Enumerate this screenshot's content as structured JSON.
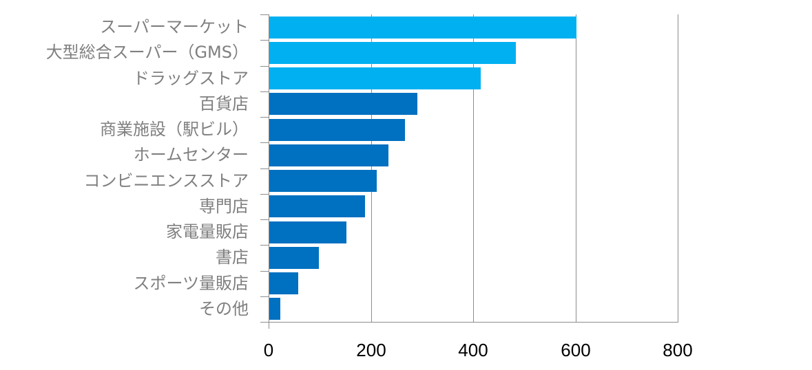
{
  "chart_data": {
    "type": "bar",
    "orientation": "horizontal",
    "title": "",
    "xlabel": "",
    "ylabel": "",
    "xlim": [
      0,
      800
    ],
    "x_ticks": [
      "0",
      "200",
      "400",
      "600",
      "800"
    ],
    "grid": true,
    "legend": null,
    "categories": [
      "スーパーマーケット",
      "大型総合スーパー（GMS）",
      "ドラッグストア",
      "百貨店",
      "商業施設（駅ビル）",
      "ホームセンター",
      "コンビニエンスストア",
      "専門店",
      "家電量販店",
      "書店",
      "スポーツ量販店",
      "その他"
    ],
    "values": [
      600,
      482,
      413,
      290,
      265,
      233,
      210,
      187,
      151,
      97,
      57,
      22
    ],
    "bar_colors": [
      "#00b0f0",
      "#00b0f0",
      "#00b0f0",
      "#0070c0",
      "#0070c0",
      "#0070c0",
      "#0070c0",
      "#0070c0",
      "#0070c0",
      "#0070c0",
      "#0070c0",
      "#0070c0"
    ]
  },
  "colors": {
    "highlight": "#00b0f0",
    "default": "#0070c0",
    "grid": "#8c8c8c",
    "label": "#7f7f7f"
  }
}
